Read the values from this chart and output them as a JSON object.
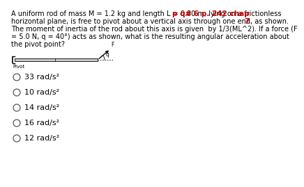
{
  "title_lines": [
    "A uniform rod of mass M = 1.2 kg and length L = 0.80 m, lying on a frictionless",
    "horizontal plane, is free to pivot about a vertical axis through one end, as shown.",
    "The moment of inertia of the rod about this axis is given  by 1/3(ML^2). If a force (F",
    "= 5.0 N, q = 40°) acts as shown, what is the resulting angular acceleration about",
    "the pivot point?"
  ],
  "ref_line1": "p q# 6 p. 242 chap",
  "ref_line2": "7",
  "ref_color": "#cc0000",
  "choices": [
    "33 rad/s²",
    "10 rad/s²",
    "14 rad/s²",
    "16 rad/s²",
    "12 rad/s²"
  ],
  "bg_color": "#ffffff",
  "text_color": "#000000",
  "title_fontsize": 7.0,
  "choice_fontsize": 8.0,
  "ref_fontsize": 7.5
}
